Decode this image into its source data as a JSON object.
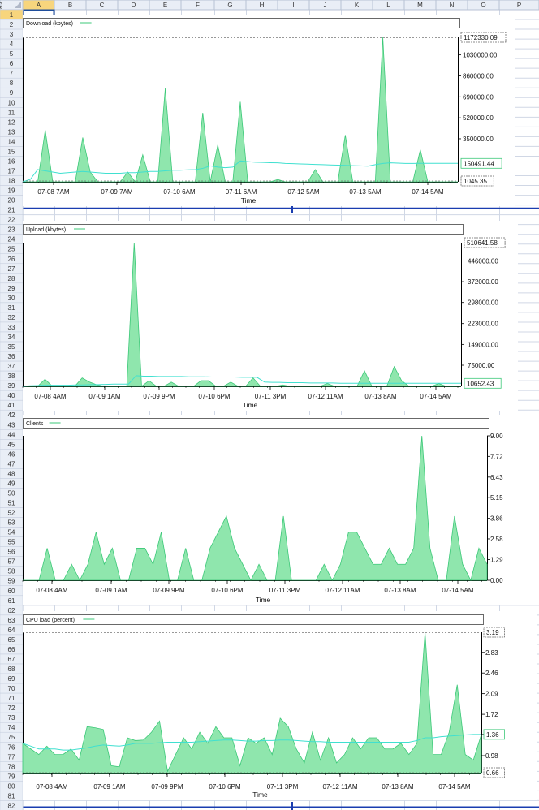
{
  "spreadsheet": {
    "columns": [
      "A",
      "B",
      "C",
      "D",
      "E",
      "F",
      "G",
      "H",
      "I",
      "J",
      "K",
      "L",
      "M",
      "N",
      "O",
      "P",
      "Q"
    ],
    "rows": 82,
    "active_cell": "A1"
  },
  "colors": {
    "area_fill": "#8fe6ad",
    "area_stroke": "#3cc878",
    "avg_line": "#40e0d0",
    "frame": "#000000",
    "grid_header_bg": "#e9eef6",
    "grid_line": "#d0d7e5"
  },
  "chart_data": [
    {
      "type": "area",
      "title": "Download (kbytes)",
      "xlabel": "Time",
      "tick_labels": [
        "07-08 7AM",
        "07-09 7AM",
        "07-10 6AM",
        "07-11 6AM",
        "07-12 5AM",
        "07-13 5AM",
        "07-14 5AM"
      ],
      "y_ticks": [
        "1030000.00",
        "860000.00",
        "690000.00",
        "520000.00",
        "350000.00"
      ],
      "ylim": [
        1045.35,
        1172330.09
      ],
      "max_label": "1172330.09",
      "min_label": "1045.35",
      "avg_label": "150491.44",
      "series": [
        {
          "values": [
            1045,
            1045,
            1045,
            420000,
            1045,
            1045,
            1045,
            1045,
            360000,
            80000,
            1045,
            1045,
            1045,
            1045,
            80000,
            1045,
            220000,
            1045,
            1045,
            760000,
            1045,
            1045,
            1045,
            1045,
            560000,
            1045,
            300000,
            1045,
            1045,
            650000,
            1045,
            1045,
            1045,
            1045,
            20000,
            1045,
            1045,
            1045,
            1045,
            100000,
            1045,
            1045,
            1045,
            380000,
            1045,
            1045,
            1045,
            1045,
            1172330,
            1045,
            1045,
            1045,
            1045,
            260000,
            1045,
            1045,
            1045,
            1045,
            1045
          ]
        },
        {
          "values": [
            1045,
            20000,
            100000,
            90000,
            80000,
            70000,
            75000,
            80000,
            85000,
            80000,
            75000,
            70000,
            70000,
            70000,
            75000,
            75000,
            80000,
            85000,
            85000,
            90000,
            95000,
            95000,
            98000,
            100000,
            110000,
            130000,
            120000,
            115000,
            120000,
            170000,
            165000,
            160000,
            158000,
            156000,
            155000,
            150000,
            148000,
            146000,
            144000,
            142000,
            140000,
            138000,
            136000,
            134000,
            132000,
            130000,
            128000,
            140000,
            150000,
            155000,
            152000,
            150000,
            150000,
            150491,
            150491,
            150491,
            150491,
            150491,
            150491
          ]
        }
      ]
    },
    {
      "type": "area",
      "title": "Upload (kbytes)",
      "xlabel": "Time",
      "tick_labels": [
        "07-08 4AM",
        "07-09 1AM",
        "07-09 9PM",
        "07-10 6PM",
        "07-11 3PM",
        "07-12 11AM",
        "07-13 8AM",
        "07-14 5AM"
      ],
      "y_ticks": [
        "446000.00",
        "372000.00",
        "298000.00",
        "223000.00",
        "149000.00",
        "75000.00"
      ],
      "ylim": [
        0,
        510641.58
      ],
      "max_label": "510641.58",
      "avg_label": "10652.43",
      "series": [
        {
          "values": [
            0,
            0,
            0,
            25000,
            0,
            0,
            0,
            0,
            30000,
            15000,
            5000,
            0,
            0,
            0,
            0,
            510641,
            0,
            20000,
            0,
            0,
            15000,
            0,
            0,
            0,
            20000,
            20000,
            0,
            0,
            15000,
            0,
            0,
            30000,
            0,
            0,
            0,
            5000,
            0,
            0,
            0,
            0,
            0,
            10000,
            0,
            0,
            0,
            0,
            55000,
            0,
            0,
            0,
            70000,
            20000,
            0,
            0,
            0,
            0,
            10000,
            0,
            0,
            0
          ]
        },
        {
          "values": [
            0,
            2000,
            3000,
            4000,
            4000,
            4000,
            4000,
            5000,
            5000,
            6000,
            6000,
            7000,
            8000,
            8000,
            8000,
            38000,
            36000,
            36000,
            35000,
            35000,
            35000,
            35000,
            34000,
            34000,
            34000,
            33000,
            33000,
            33000,
            33000,
            32000,
            32000,
            32000,
            15000,
            14000,
            14000,
            13000,
            13000,
            13000,
            12000,
            12000,
            12000,
            12000,
            11000,
            11000,
            11000,
            11000,
            11000,
            11000,
            11000,
            11000,
            11000,
            11000,
            10652,
            10652,
            10652,
            10652,
            10652,
            10652,
            10652
          ]
        }
      ]
    },
    {
      "type": "area",
      "title": "Clients",
      "xlabel": "Time",
      "tick_labels": [
        "07-08 4AM",
        "07-09 1AM",
        "07-09 9PM",
        "07-10 6PM",
        "07-11 3PM",
        "07-12 11AM",
        "07-13 8AM",
        "07-14 5AM"
      ],
      "y_ticks": [
        "9.00",
        "7.72",
        "6.43",
        "5.15",
        "3.86",
        "2.58",
        "1.29",
        "0.00"
      ],
      "ylim": [
        0,
        9
      ],
      "series": [
        {
          "values": [
            0,
            0,
            0,
            2,
            0,
            0,
            1,
            0,
            1,
            3,
            1,
            2,
            0,
            0,
            2,
            2,
            1,
            3,
            0,
            0,
            2,
            0,
            0,
            2,
            3,
            4,
            2,
            1,
            0,
            1,
            0,
            0,
            4,
            0,
            0,
            0,
            0,
            1,
            0,
            1,
            3,
            3,
            2,
            1,
            1,
            2,
            1,
            1,
            2,
            9,
            2,
            0,
            0,
            4,
            1,
            0,
            2,
            1
          ]
        }
      ]
    },
    {
      "type": "area",
      "title": "CPU load (percent)",
      "xlabel": "Time",
      "tick_labels": [
        "07-08 4AM",
        "07-09 1AM",
        "07-09 9PM",
        "07-10 6PM",
        "07-11 3PM",
        "07-12 11AM",
        "07-13 8AM",
        "07-14 5AM"
      ],
      "y_ticks": [
        "2.83",
        "2.46",
        "2.09",
        "1.72",
        "1.36",
        "0.98"
      ],
      "ylim": [
        0.66,
        3.19
      ],
      "max_label": "3.19",
      "min_label": "0.66",
      "avg_label": "1.36",
      "series": [
        {
          "values": [
            1.2,
            1.1,
            1.0,
            1.15,
            1.0,
            1.0,
            1.1,
            0.9,
            1.5,
            1.48,
            1.45,
            0.8,
            0.78,
            1.3,
            1.25,
            1.26,
            1.4,
            1.6,
            0.7,
            1.0,
            1.3,
            1.1,
            1.4,
            1.2,
            1.5,
            1.3,
            1.3,
            0.8,
            1.3,
            1.2,
            1.3,
            1.0,
            1.65,
            1.5,
            1.1,
            0.85,
            1.4,
            0.9,
            1.3,
            0.85,
            1.0,
            1.3,
            1.1,
            1.3,
            1.3,
            1.1,
            1.1,
            1.2,
            1.0,
            1.2,
            3.19,
            1.0,
            1.0,
            1.4,
            2.25,
            1.0,
            0.9,
            1.36
          ]
        },
        {
          "values": [
            1.2,
            1.15,
            1.1,
            1.1,
            1.1,
            1.08,
            1.08,
            1.1,
            1.12,
            1.15,
            1.17,
            1.16,
            1.15,
            1.17,
            1.2,
            1.2,
            1.2,
            1.21,
            1.22,
            1.22,
            1.22,
            1.22,
            1.23,
            1.24,
            1.25,
            1.26,
            1.26,
            1.25,
            1.24,
            1.24,
            1.25,
            1.25,
            1.26,
            1.26,
            1.25,
            1.24,
            1.23,
            1.23,
            1.22,
            1.22,
            1.22,
            1.22,
            1.22,
            1.22,
            1.22,
            1.22,
            1.22,
            1.22,
            1.22,
            1.25,
            1.3,
            1.3,
            1.32,
            1.33,
            1.34,
            1.35,
            1.36,
            1.36
          ]
        }
      ]
    }
  ]
}
